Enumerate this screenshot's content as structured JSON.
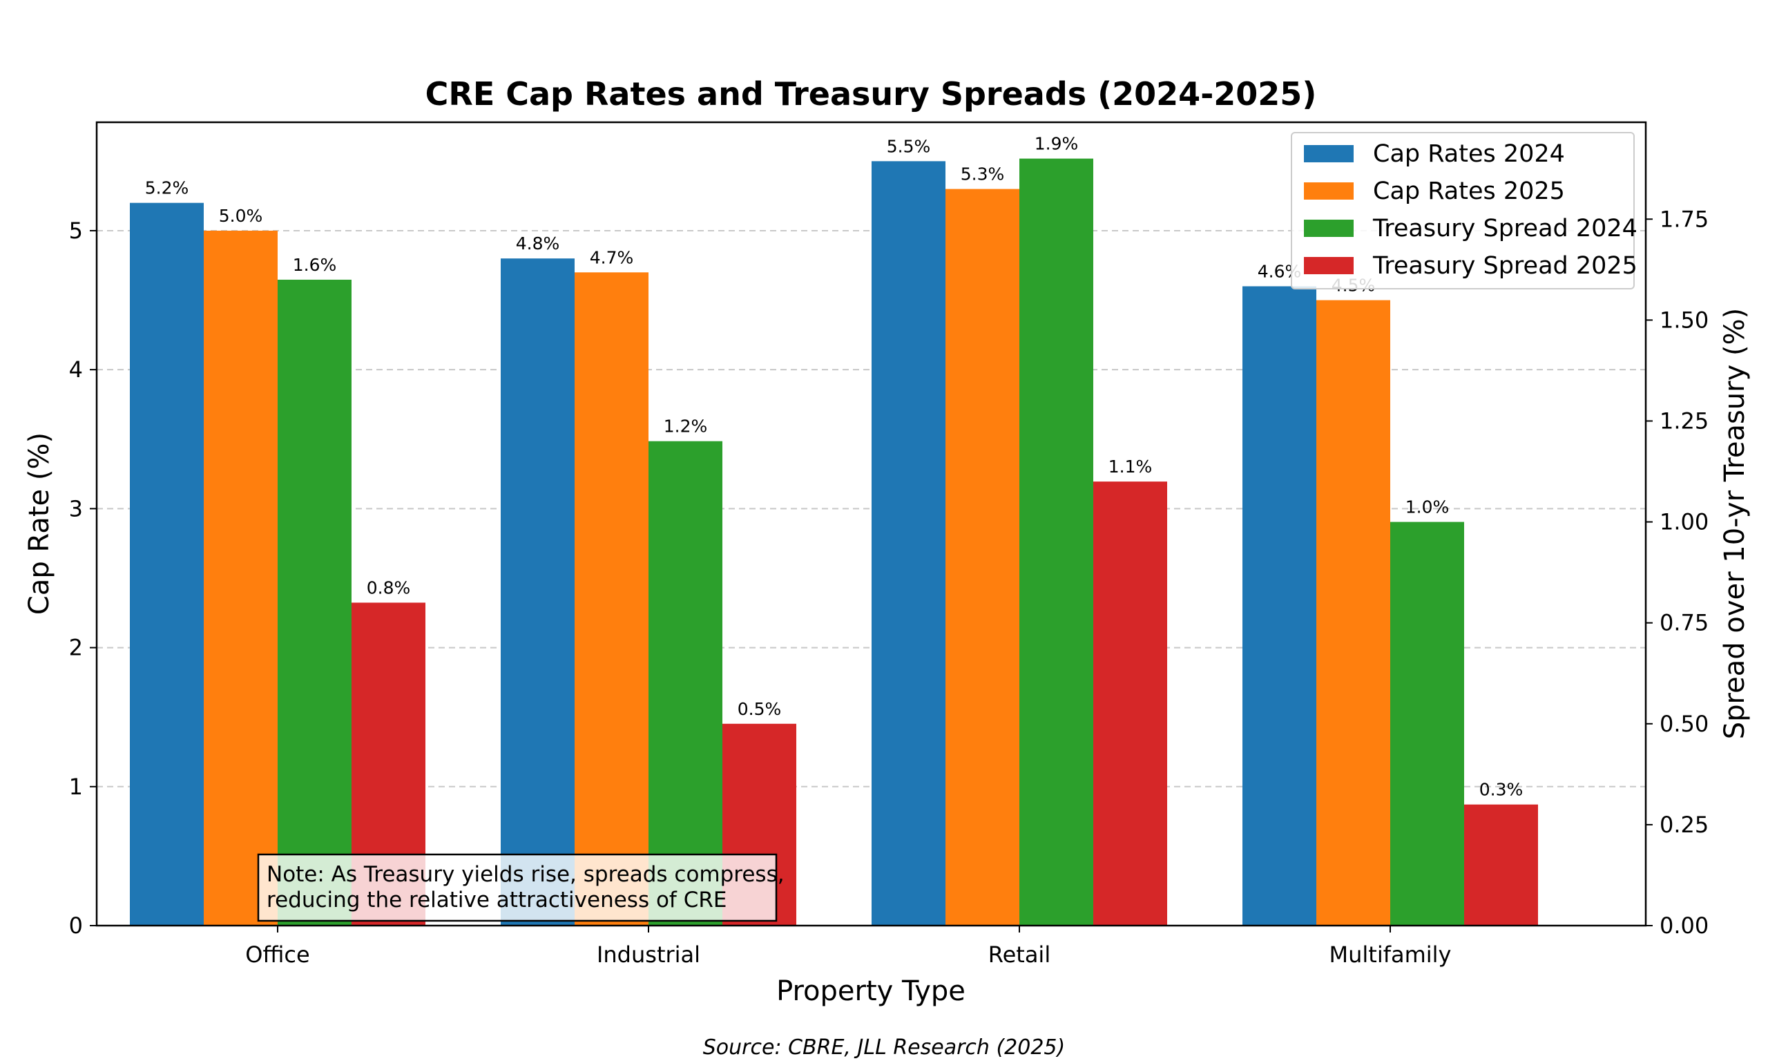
{
  "chart_data": {
    "type": "bar",
    "title": "CRE Cap Rates and Treasury Spreads (2024-2025)",
    "xlabel": "Property Type",
    "ylabel": "Cap Rate (%)",
    "y2label": "Spread over 10-yr Treasury (%)",
    "categories": [
      "Office",
      "Industrial",
      "Retail",
      "Multifamily"
    ],
    "ylim": [
      0,
      5.78
    ],
    "y2lim": [
      0,
      1.99
    ],
    "yticks": [
      0,
      1,
      2,
      3,
      4,
      5
    ],
    "y2ticks": [
      0.0,
      0.25,
      0.5,
      0.75,
      1.0,
      1.25,
      1.5,
      1.75
    ],
    "ytick_labels": [
      "0",
      "1",
      "2",
      "3",
      "4",
      "5"
    ],
    "y2tick_labels": [
      "0.00",
      "0.25",
      "0.50",
      "0.75",
      "1.00",
      "1.25",
      "1.50",
      "1.75"
    ],
    "grid": "horizontal dashed",
    "legend_position": "top-right",
    "series": [
      {
        "name": "Cap Rates 2024",
        "axis": "left",
        "color": "#1f77b4",
        "values": [
          5.2,
          4.8,
          5.5,
          4.6
        ],
        "labels": [
          "5.2%",
          "4.8%",
          "5.5%",
          "4.6%"
        ]
      },
      {
        "name": "Cap Rates 2025",
        "axis": "left",
        "color": "#ff7f0e",
        "values": [
          5.0,
          4.7,
          5.3,
          4.5
        ],
        "labels": [
          "5.0%",
          "4.7%",
          "5.3%",
          "4.5%"
        ]
      },
      {
        "name": "Treasury Spread 2024",
        "axis": "right",
        "color": "#2ca02c",
        "values": [
          1.6,
          1.2,
          1.9,
          1.0
        ],
        "labels": [
          "1.6%",
          "1.2%",
          "1.9%",
          "1.0%"
        ]
      },
      {
        "name": "Treasury Spread 2025",
        "axis": "right",
        "color": "#d62728",
        "values": [
          0.8,
          0.5,
          1.1,
          0.3
        ],
        "labels": [
          "0.8%",
          "0.5%",
          "1.1%",
          "0.3%"
        ]
      }
    ],
    "note": [
      "Note: As Treasury yields rise, spreads compress,",
      "reducing the relative attractiveness of CRE"
    ],
    "source": "Source: CBRE, JLL Research (2025)"
  }
}
